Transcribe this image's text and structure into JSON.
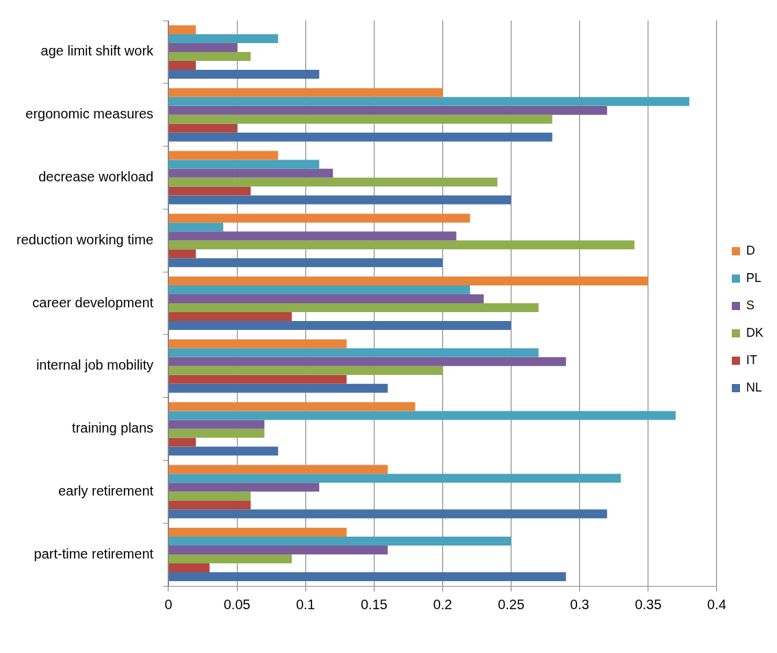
{
  "chart_data": {
    "type": "bar",
    "orientation": "horizontal",
    "categories": [
      "age limit shift work",
      "ergonomic measures",
      "decrease workload",
      "reduction working time",
      "career development",
      "internal job mobility",
      "training plans",
      "early retirement",
      "part-time retirement"
    ],
    "series": [
      {
        "name": "D",
        "color": "#e8853b",
        "values": [
          0.02,
          0.2,
          0.08,
          0.22,
          0.35,
          0.13,
          0.18,
          0.16,
          0.13
        ]
      },
      {
        "name": "PL",
        "color": "#4aa3bd",
        "values": [
          0.08,
          0.38,
          0.11,
          0.04,
          0.22,
          0.27,
          0.37,
          0.33,
          0.25
        ]
      },
      {
        "name": "S",
        "color": "#7a5d9a",
        "values": [
          0.05,
          0.32,
          0.12,
          0.21,
          0.23,
          0.29,
          0.07,
          0.11,
          0.16
        ]
      },
      {
        "name": "DK",
        "color": "#8fae4e",
        "values": [
          0.06,
          0.28,
          0.24,
          0.34,
          0.27,
          0.2,
          0.07,
          0.06,
          0.09
        ]
      },
      {
        "name": "IT",
        "color": "#b5473f",
        "values": [
          0.02,
          0.05,
          0.06,
          0.02,
          0.09,
          0.13,
          0.02,
          0.06,
          0.03
        ]
      },
      {
        "name": "NL",
        "color": "#4571a8",
        "values": [
          0.11,
          0.28,
          0.25,
          0.2,
          0.25,
          0.16,
          0.08,
          0.32,
          0.29
        ]
      }
    ],
    "xlim": [
      0,
      0.4
    ],
    "xticks": [
      0,
      0.05,
      0.1,
      0.15,
      0.2,
      0.25,
      0.3,
      0.35,
      0.4
    ],
    "grid": "x",
    "legend": "right"
  }
}
